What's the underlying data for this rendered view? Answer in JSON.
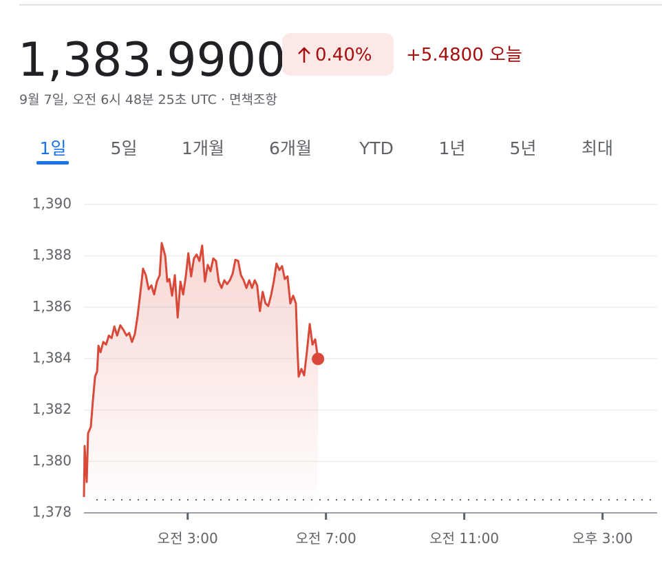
{
  "header": {
    "price": "1,383.9900",
    "change_percent": "0.40%",
    "change": "+5.4800",
    "period": "오늘",
    "timestamp": "9월 7일, 오전 6시 48분 25초 UTC ·",
    "disclaimer": "면책조항"
  },
  "tabs": [
    "1일",
    "5일",
    "1개월",
    "6개월",
    "YTD",
    "1년",
    "5년",
    "최대"
  ],
  "chart_data": {
    "type": "line",
    "x": [
      0,
      0.02,
      0.08,
      0.12,
      0.2,
      0.26,
      0.32,
      0.38,
      0.42,
      0.48,
      0.56,
      0.64,
      0.72,
      0.8,
      0.88,
      0.96,
      1.05,
      1.15,
      1.23,
      1.31,
      1.39,
      1.47,
      1.55,
      1.63,
      1.71,
      1.79,
      1.87,
      1.95,
      2.03,
      2.11,
      2.19,
      2.25,
      2.35,
      2.41,
      2.47,
      2.55,
      2.63,
      2.71,
      2.79,
      2.87,
      2.95,
      3.02,
      3.1,
      3.18,
      3.26,
      3.34,
      3.42,
      3.5,
      3.58,
      3.66,
      3.74,
      3.82,
      3.9,
      3.98,
      4.06,
      4.14,
      4.22,
      4.3,
      4.38,
      4.46,
      4.54,
      4.62,
      4.7,
      4.78,
      4.86,
      4.94,
      5.01,
      5.09,
      5.17,
      5.25,
      5.33,
      5.41,
      5.49,
      5.57,
      5.65,
      5.73,
      5.81,
      5.89,
      5.97,
      6.05,
      6.13,
      6.17,
      6.21,
      6.29,
      6.37,
      6.45,
      6.53,
      6.61,
      6.69,
      6.77
    ],
    "series": [
      {
        "color": "#d9493a",
        "values": [
          1378.62,
          1380.6,
          1379.2,
          1381.1,
          1381.35,
          1382.4,
          1383.3,
          1383.5,
          1384.5,
          1384.25,
          1384.65,
          1384.55,
          1384.9,
          1384.8,
          1385.25,
          1384.9,
          1385.3,
          1385.1,
          1384.9,
          1385.0,
          1384.65,
          1384.95,
          1385.65,
          1386.55,
          1387.5,
          1387.25,
          1386.7,
          1386.85,
          1386.5,
          1387.0,
          1387.25,
          1388.5,
          1388.0,
          1387.0,
          1387.1,
          1386.45,
          1387.25,
          1385.6,
          1387.0,
          1386.5,
          1387.25,
          1388.1,
          1387.2,
          1387.9,
          1388.05,
          1387.8,
          1388.4,
          1387.0,
          1387.65,
          1387.4,
          1387.9,
          1387.8,
          1387.0,
          1386.75,
          1387.05,
          1386.9,
          1387.05,
          1387.3,
          1387.85,
          1387.8,
          1387.25,
          1387.05,
          1386.75,
          1387.05,
          1386.75,
          1387.05,
          1386.85,
          1385.85,
          1386.6,
          1386.15,
          1386.05,
          1386.45,
          1387.0,
          1387.7,
          1387.45,
          1387.6,
          1387.1,
          1387.2,
          1386.15,
          1386.45,
          1386.15,
          1384.55,
          1383.3,
          1383.6,
          1383.35,
          1384.3,
          1385.35,
          1384.55,
          1384.75,
          1383.99
        ]
      }
    ],
    "previous_close": 1378.51,
    "xlim": [
      0,
      16.58
    ],
    "xticks": [
      {
        "value": 3,
        "label": "오전 3:00"
      },
      {
        "value": 7,
        "label": "오전 7:00"
      },
      {
        "value": 11,
        "label": "오전 11:00"
      },
      {
        "value": 15,
        "label": "오후 3:00"
      }
    ],
    "ylim": [
      1378,
      1390
    ],
    "yticks": [
      {
        "value": 1378,
        "label": "1,378"
      },
      {
        "value": 1380,
        "label": "1,380"
      },
      {
        "value": 1382,
        "label": "1,382"
      },
      {
        "value": 1384,
        "label": "1,384"
      },
      {
        "value": 1386,
        "label": "1,386"
      },
      {
        "value": 1388,
        "label": "1,388"
      },
      {
        "value": 1390,
        "label": "1,390"
      }
    ],
    "grid": true
  }
}
